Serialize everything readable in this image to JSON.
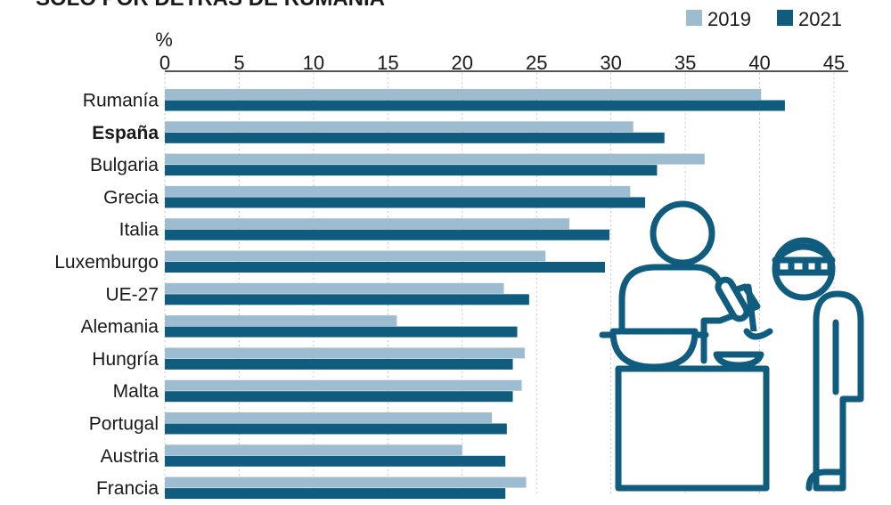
{
  "title_partial": "SOLO POR DETRÁS DE RUMANÍA",
  "chart_data": {
    "type": "bar",
    "orientation": "horizontal",
    "unit_label": "%",
    "xlim": [
      0,
      45
    ],
    "xticks": [
      0,
      5,
      10,
      15,
      20,
      25,
      30,
      35,
      40,
      45
    ],
    "grid": true,
    "legend_position": "top-right",
    "categories": [
      "Rumanía",
      "España",
      "Bulgaria",
      "Grecia",
      "Italia",
      "Luxemburgo",
      "UE-27",
      "Alemania",
      "Hungría",
      "Malta",
      "Portugal",
      "Austria",
      "Francia"
    ],
    "highlight_category": "España",
    "series": [
      {
        "name": "2019",
        "color": "#9dbcd0",
        "values": [
          40.1,
          31.5,
          36.3,
          31.3,
          27.2,
          25.6,
          22.8,
          15.6,
          24.2,
          24.0,
          22.0,
          20.0,
          24.3
        ]
      },
      {
        "name": "2021",
        "color": "#0f5c7f",
        "values": [
          41.7,
          33.6,
          33.1,
          32.3,
          29.9,
          29.6,
          24.5,
          23.7,
          23.4,
          23.4,
          23.0,
          22.9,
          22.9
        ]
      }
    ]
  },
  "illustration": {
    "icon": "chef-and-child-illustration",
    "color": "#0f5c7f"
  }
}
